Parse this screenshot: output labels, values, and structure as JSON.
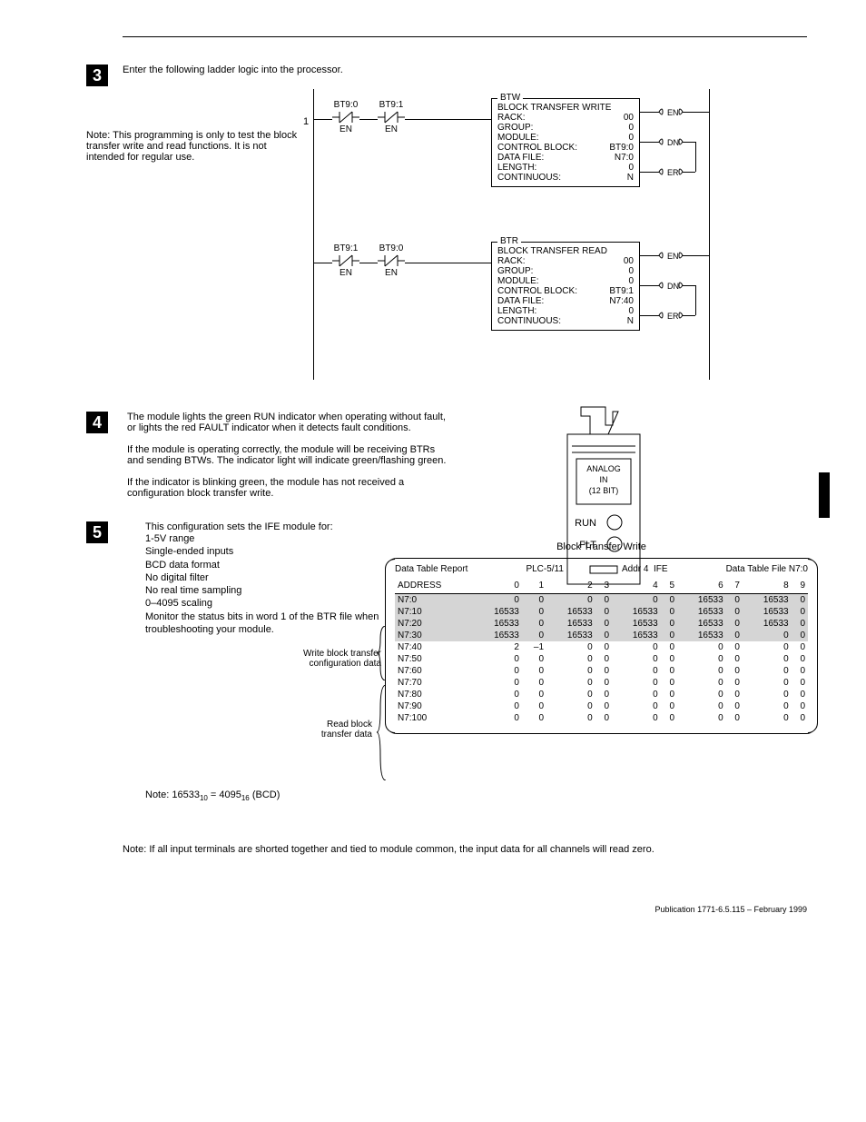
{
  "step3": {
    "num": "3",
    "intro": "Enter the following ladder logic into the processor.",
    "note": "Note: This programming is only to test the block transfer write and read functions. It is not intended for regular use.",
    "rung1": {
      "num": "1",
      "c1_top": "BT9:0",
      "c1_bot": "EN",
      "c2_top": "BT9:1",
      "c2_bot": "EN",
      "box_hdr": "BTW",
      "box_title": "BLOCK TRANSFER WRITE",
      "rows": [
        [
          "RACK:",
          "00"
        ],
        [
          "GROUP:",
          "0"
        ],
        [
          "MODULE:",
          "0"
        ],
        [
          "CONTROL BLOCK:",
          "BT9:0"
        ],
        [
          "DATA FILE:",
          "N7:0"
        ],
        [
          "LENGTH:",
          "0"
        ],
        [
          "CONTINUOUS:",
          "N"
        ]
      ],
      "coils": [
        "EN",
        "DN",
        "ER"
      ]
    },
    "rung2": {
      "c1_top": "BT9:1",
      "c1_bot": "EN",
      "c2_top": "BT9:0",
      "c2_bot": "EN",
      "box_hdr": "BTR",
      "box_title": "BLOCK TRANSFER READ",
      "rows": [
        [
          "RACK:",
          "00"
        ],
        [
          "GROUP:",
          "0"
        ],
        [
          "MODULE:",
          "0"
        ],
        [
          "CONTROL BLOCK:",
          "BT9:1"
        ],
        [
          "DATA FILE:",
          "N7:40"
        ],
        [
          "LENGTH:",
          "0"
        ],
        [
          "CONTINUOUS:",
          "N"
        ]
      ],
      "coils": [
        "EN",
        "DN",
        "ER"
      ]
    }
  },
  "step4": {
    "num": "4",
    "p1": "The module lights the green RUN indicator when operating without fault, or lights the red FAULT indicator when it detects fault conditions.",
    "p2": "If the module is operating correctly, the module will be receiving BTRs and sending BTWs. The indicator light will indicate green/flashing green.",
    "p3": "If the indicator is blinking green, the module has not received a configuration block transfer write.",
    "mod_l1": "ANALOG",
    "mod_l2": "IN",
    "mod_l3": "(12 BIT)",
    "run": "RUN",
    "flt": "FLT"
  },
  "step5": {
    "num": "5",
    "intro": "This configuration sets the IFE module for:",
    "bullets": [
      "1-5V range",
      "Single-ended inputs",
      "BCD data format",
      "No digital filter",
      "No real time sampling",
      "0–4095 scaling",
      "Monitor the status bits in word 1 of the BTR file when troubleshooting your module."
    ],
    "side1": "Write block transfer configuration data",
    "side2": "Read block transfer data",
    "note_bcd_a": "Note: 16533",
    "note_bcd_b": " = 4095",
    "note_bcd_c": " (BCD)",
    "sub10": "10",
    "sub16": "16",
    "btw_title": "Block Transfer Write",
    "hdr_left": "Data Table Report",
    "hdr_mid1": "PLC-5/11",
    "hdr_mid2": "Addr 4",
    "hdr_mid3": "IFE",
    "hdr_right": "Data Table File N7:0",
    "cols": [
      "ADDRESS",
      "0",
      "1",
      "2",
      "3",
      "4",
      "5",
      "6",
      "7",
      "8",
      "9"
    ],
    "rows": [
      {
        "addr": "N7:0",
        "vals": [
          "0",
          "0",
          "0",
          "0",
          "0",
          "0",
          "16533",
          "0",
          "16533",
          "0"
        ],
        "shade": true
      },
      {
        "addr": "N7:10",
        "vals": [
          "16533",
          "0",
          "16533",
          "0",
          "16533",
          "0",
          "16533",
          "0",
          "16533",
          "0"
        ],
        "shade": true
      },
      {
        "addr": "N7:20",
        "vals": [
          "16533",
          "0",
          "16533",
          "0",
          "16533",
          "0",
          "16533",
          "0",
          "16533",
          "0"
        ],
        "shade": true
      },
      {
        "addr": "N7:30",
        "vals": [
          "16533",
          "0",
          "16533",
          "0",
          "16533",
          "0",
          "16533",
          "0",
          "0",
          "0"
        ],
        "shade": true
      },
      {
        "addr": "N7:40",
        "vals": [
          "2",
          "–1",
          "0",
          "0",
          "0",
          "0",
          "0",
          "0",
          "0",
          "0"
        ],
        "shade": false
      },
      {
        "addr": "N7:50",
        "vals": [
          "0",
          "0",
          "0",
          "0",
          "0",
          "0",
          "0",
          "0",
          "0",
          "0"
        ],
        "shade": false
      },
      {
        "addr": "N7:60",
        "vals": [
          "0",
          "0",
          "0",
          "0",
          "0",
          "0",
          "0",
          "0",
          "0",
          "0"
        ],
        "shade": false
      },
      {
        "addr": "N7:70",
        "vals": [
          "0",
          "0",
          "0",
          "0",
          "0",
          "0",
          "0",
          "0",
          "0",
          "0"
        ],
        "shade": false
      },
      {
        "addr": "N7:80",
        "vals": [
          "0",
          "0",
          "0",
          "0",
          "0",
          "0",
          "0",
          "0",
          "0",
          "0"
        ],
        "shade": false
      },
      {
        "addr": "N7:90",
        "vals": [
          "0",
          "0",
          "0",
          "0",
          "0",
          "0",
          "0",
          "0",
          "0",
          "0"
        ],
        "shade": false
      },
      {
        "addr": "N7:100",
        "vals": [
          "0",
          "0",
          "0",
          "0",
          "0",
          "0",
          "0",
          "0",
          "0",
          "0"
        ],
        "shade": false
      }
    ]
  },
  "bottom_note": "Note: If all input terminals are shorted together and tied to module common, the input data for all channels will read zero.",
  "pub": "Publication 1771-6.5.115 – February 1999"
}
